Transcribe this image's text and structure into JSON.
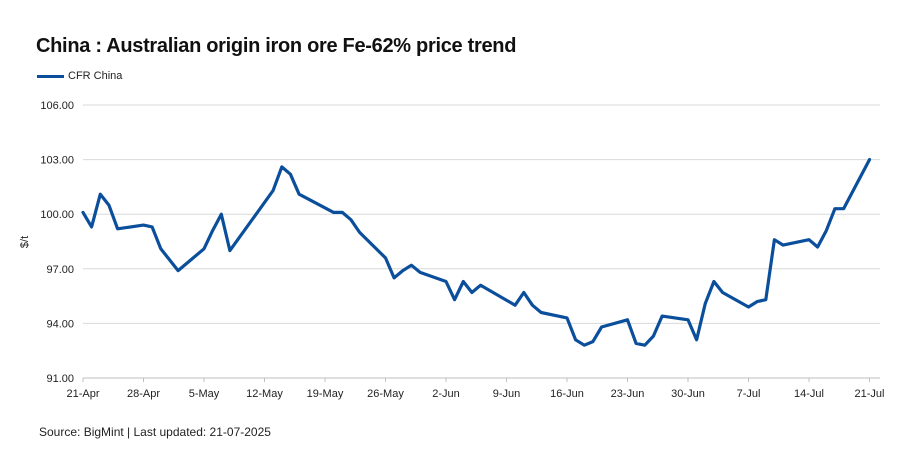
{
  "header": {
    "title": "China : Australian origin iron ore Fe-62% price trend"
  },
  "legend": {
    "items": [
      {
        "label": "CFR China",
        "color": "#0b4f9c"
      }
    ]
  },
  "footer": {
    "source": "Source: BigMint | Last updated: 21-07-2025"
  },
  "colors": {
    "line": "#0b4f9c",
    "grid": "#d9d9d9",
    "axis": "#bfbfbf"
  },
  "chart_data": {
    "type": "line",
    "title": "China : Australian origin iron ore Fe-62% price trend",
    "xlabel": "",
    "ylabel": "$/t",
    "ylim": [
      91,
      106
    ],
    "yticks": [
      91,
      94,
      97,
      100,
      103,
      106
    ],
    "ytick_labels": [
      "91.00",
      "94.00",
      "97.00",
      "100.00",
      "103.00",
      "106.00"
    ],
    "xtick_labels": [
      "21-Apr",
      "28-Apr",
      "5-May",
      "12-May",
      "19-May",
      "26-May",
      "2-Jun",
      "9-Jun",
      "16-Jun",
      "23-Jun",
      "30-Jun",
      "7-Jul",
      "14-Jul",
      "21-Jul"
    ],
    "grid": true,
    "legend_position": "top-left",
    "series": [
      {
        "name": "CFR China",
        "x": [
          "21-Apr",
          "22-Apr",
          "23-Apr",
          "24-Apr",
          "25-Apr",
          "28-Apr",
          "29-Apr",
          "30-Apr",
          "2-May",
          "5-May",
          "6-May",
          "7-May",
          "8-May",
          "13-May",
          "14-May",
          "15-May",
          "16-May",
          "20-May",
          "21-May",
          "22-May",
          "23-May",
          "26-May",
          "27-May",
          "28-May",
          "29-May",
          "30-May",
          "2-Jun",
          "3-Jun",
          "4-Jun",
          "5-Jun",
          "6-Jun",
          "10-Jun",
          "11-Jun",
          "12-Jun",
          "13-Jun",
          "16-Jun",
          "17-Jun",
          "18-Jun",
          "19-Jun",
          "20-Jun",
          "23-Jun",
          "24-Jun",
          "25-Jun",
          "26-Jun",
          "27-Jun",
          "30-Jun",
          "1-Jul",
          "2-Jul",
          "3-Jul",
          "4-Jul",
          "7-Jul",
          "8-Jul",
          "9-Jul",
          "10-Jul",
          "11-Jul",
          "14-Jul",
          "15-Jul",
          "16-Jul",
          "17-Jul",
          "18-Jul",
          "21-Jul"
        ],
        "day_offset": [
          0,
          1,
          2,
          3,
          4,
          7,
          8,
          9,
          11,
          14,
          15,
          16,
          17,
          22,
          23,
          24,
          25,
          29,
          30,
          31,
          32,
          35,
          36,
          37,
          38,
          39,
          42,
          43,
          44,
          45,
          46,
          50,
          51,
          52,
          53,
          56,
          57,
          58,
          59,
          60,
          63,
          64,
          65,
          66,
          67,
          70,
          71,
          72,
          73,
          74,
          77,
          78,
          79,
          80,
          81,
          84,
          85,
          86,
          87,
          88,
          91
        ],
        "values": [
          100.1,
          99.3,
          101.1,
          100.5,
          99.2,
          99.4,
          99.3,
          98.1,
          96.9,
          98.1,
          99.1,
          100.0,
          98.0,
          101.3,
          102.6,
          102.2,
          101.1,
          100.1,
          100.1,
          99.7,
          99.0,
          97.6,
          96.5,
          96.9,
          97.2,
          96.8,
          96.3,
          95.3,
          96.3,
          95.7,
          96.1,
          95.0,
          95.7,
          95.0,
          94.6,
          94.3,
          93.1,
          92.8,
          93.0,
          93.8,
          94.2,
          92.9,
          92.8,
          93.3,
          94.4,
          94.2,
          93.1,
          95.1,
          96.3,
          95.7,
          94.9,
          95.2,
          95.3,
          98.6,
          98.3,
          98.6,
          98.2,
          99.1,
          100.3,
          100.3,
          103.0
        ]
      }
    ]
  }
}
